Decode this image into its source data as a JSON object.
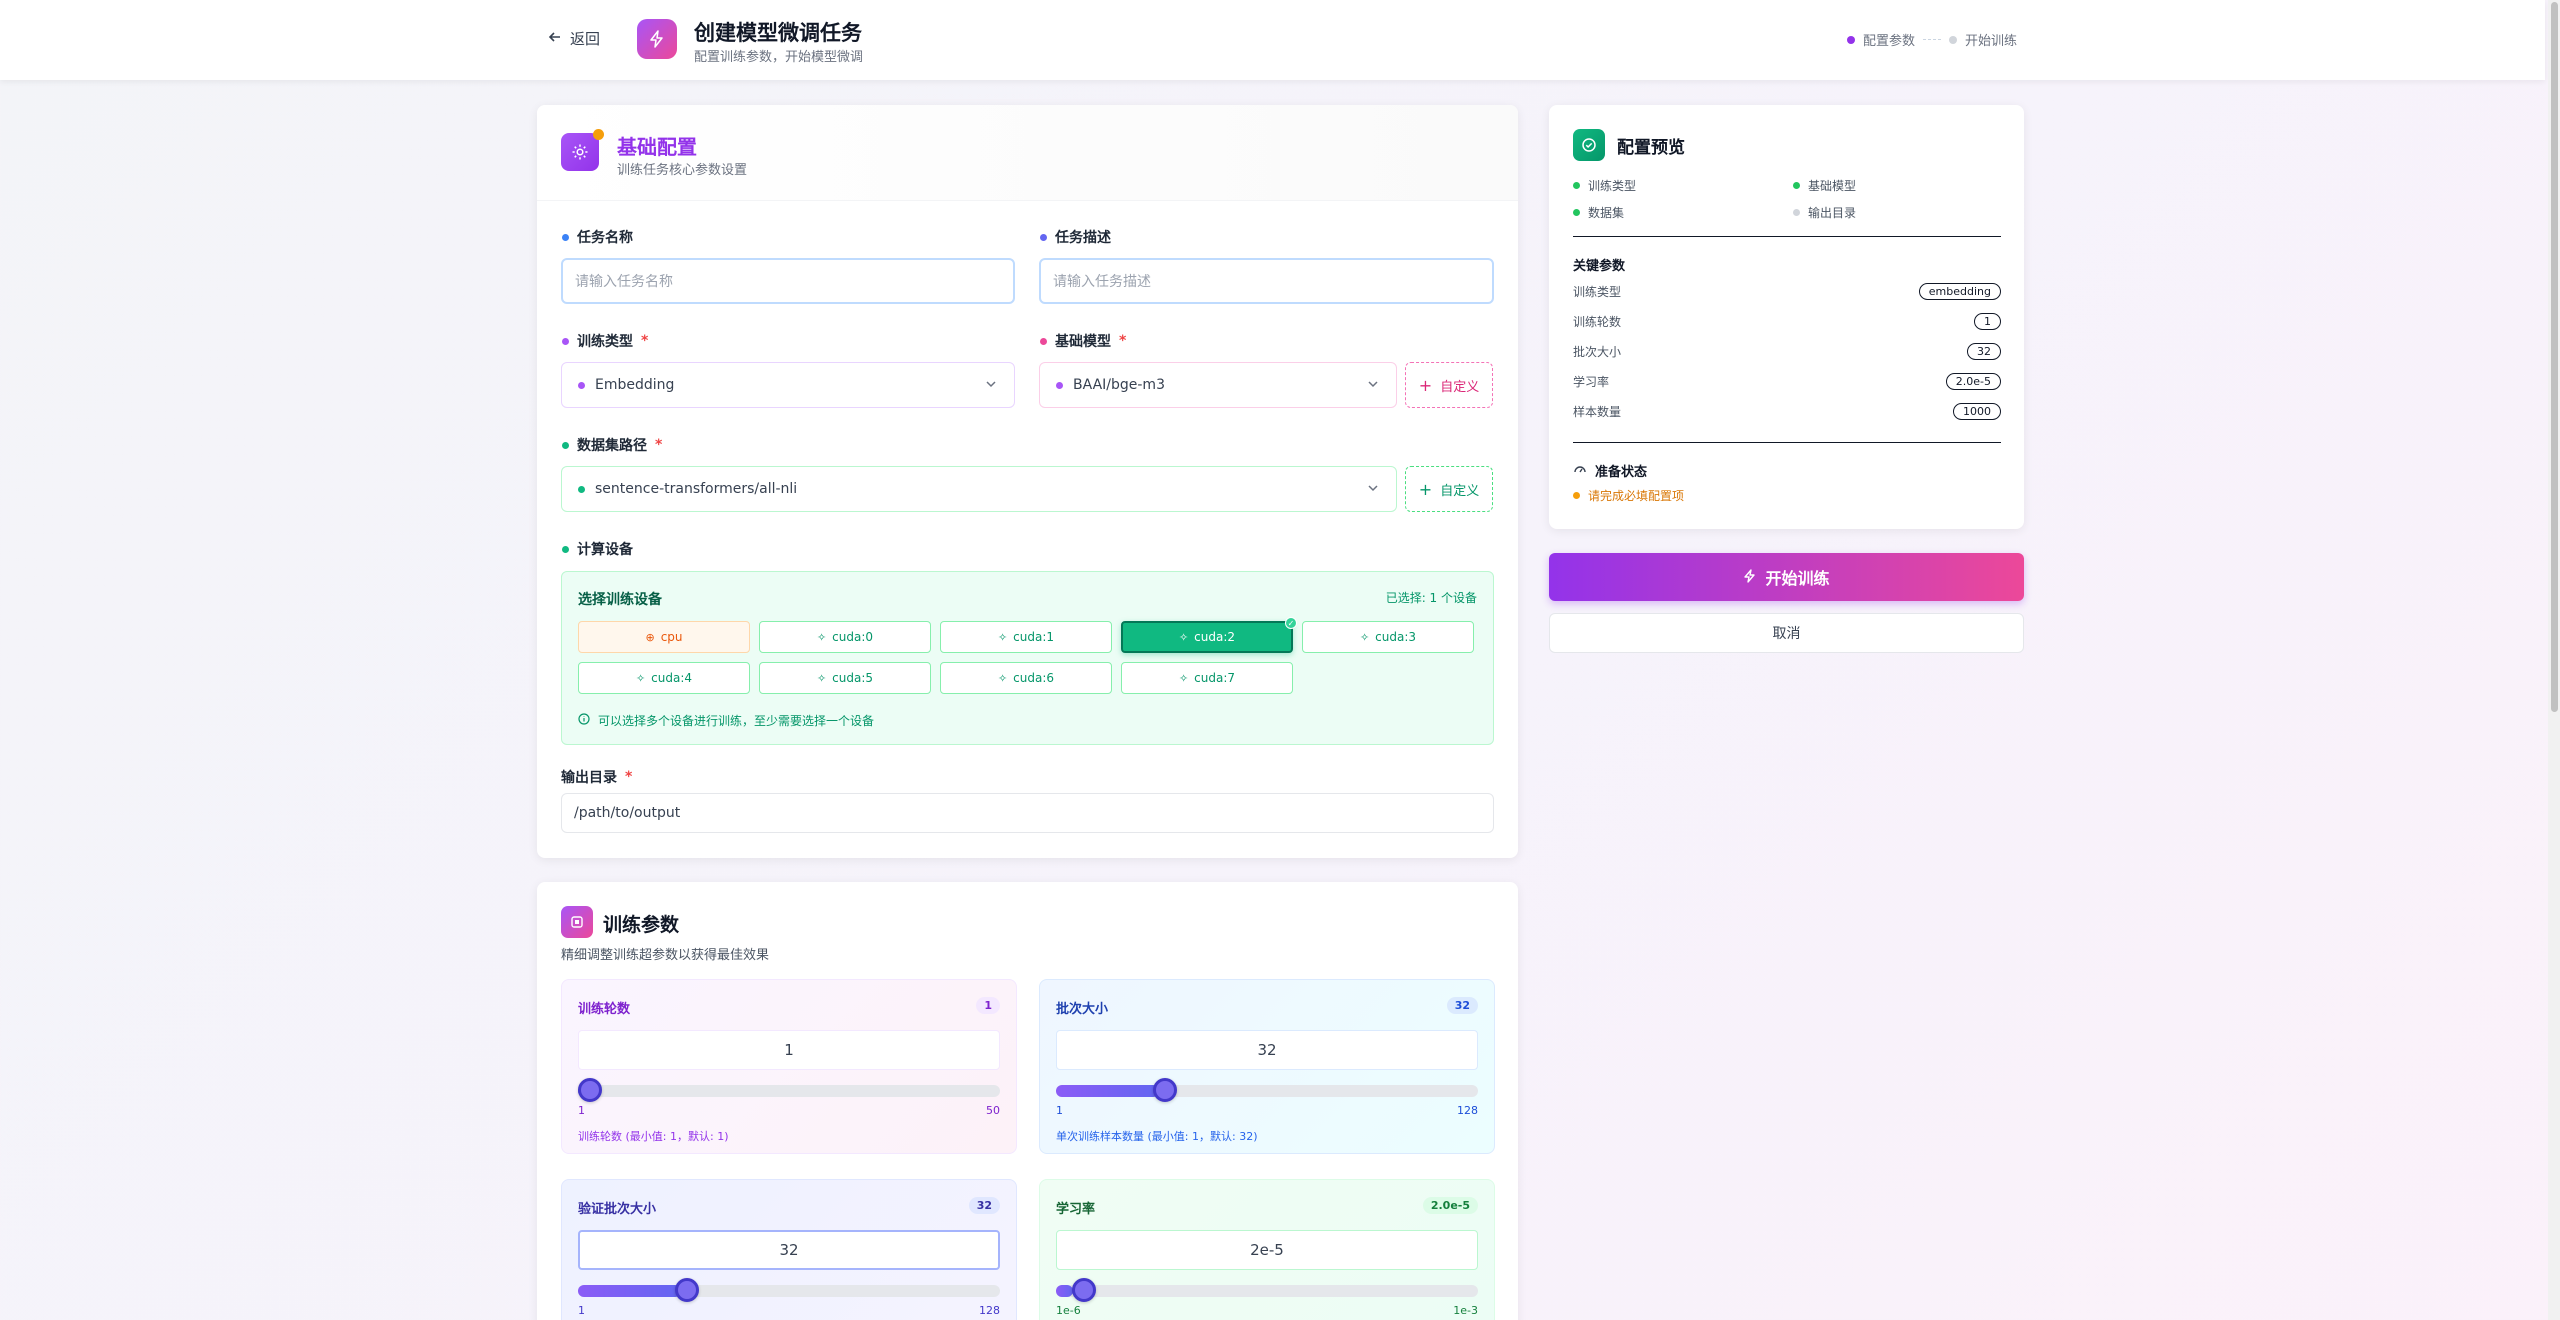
{
  "header": {
    "back": "返回",
    "title": "创建模型微调任务",
    "subtitle": "配置训练参数，开始模型微调",
    "step1": "配置参数",
    "step2": "开始训练"
  },
  "basic": {
    "title": "基础配置",
    "subtitle": "训练任务核心参数设置",
    "task_name_label": "任务名称",
    "task_name_placeholder": "请输入任务名称",
    "task_desc_label": "任务描述",
    "task_desc_placeholder": "请输入任务描述",
    "train_type_label": "训练类型",
    "train_type_value": "Embedding",
    "base_model_label": "基础模型",
    "base_model_value": "BAAI/bge-m3",
    "custom": "自定义",
    "dataset_label": "数据集路径",
    "dataset_value": "sentence-transformers/all-nli",
    "device_label": "计算设备",
    "device_select": "选择训练设备",
    "device_selected": "已选择: 1 个设备",
    "devices": [
      "cpu",
      "cuda:0",
      "cuda:1",
      "cuda:2",
      "cuda:3",
      "cuda:4",
      "cuda:5",
      "cuda:6",
      "cuda:7"
    ],
    "selected_device": "cuda:2",
    "device_hint": "可以选择多个设备进行训练，至少需要选择一个设备",
    "output_label": "输出目录",
    "output_value": "/path/to/output"
  },
  "params": {
    "title": "训练参数",
    "subtitle": "精细调整训练超参数以获得最佳效果",
    "epochs": {
      "label": "训练轮数",
      "badge": "1",
      "value": "1",
      "min": "1",
      "max": "50",
      "hint": "训练轮数 (最小值: 1，默认: 1)",
      "fraction": 0
    },
    "batch": {
      "label": "批次大小",
      "badge": "32",
      "value": "32",
      "min": "1",
      "max": "128",
      "hint": "单次训练样本数量 (最小值: 1，默认: 32)",
      "fraction": 0.244
    },
    "eval_batch": {
      "label": "验证批次大小",
      "badge": "32",
      "value": "32",
      "min": "1",
      "max": "128",
      "fraction": 0.244
    },
    "lr": {
      "label": "学习率",
      "badge": "2.0e-5",
      "value": "2e-5",
      "min": "1e-6",
      "max": "1e-3",
      "fraction": 0.04
    }
  },
  "preview": {
    "title": "配置预览",
    "checks": [
      "训练类型",
      "基础模型",
      "数据集",
      "输出目录"
    ],
    "key_title": "关键参数",
    "rows": [
      {
        "k": "训练类型",
        "v": "embedding"
      },
      {
        "k": "训练轮数",
        "v": "1"
      },
      {
        "k": "批次大小",
        "v": "32"
      },
      {
        "k": "学习率",
        "v": "2.0e-5"
      },
      {
        "k": "样本数量",
        "v": "1000"
      }
    ],
    "status_title": "准备状态",
    "status_text": "请完成必填配置项"
  },
  "actions": {
    "start": "开始训练",
    "cancel": "取消"
  },
  "colors": {
    "purple": "#9333ea",
    "pink": "#ec4899",
    "green": "#10b981",
    "blue": "#3b82f6"
  }
}
